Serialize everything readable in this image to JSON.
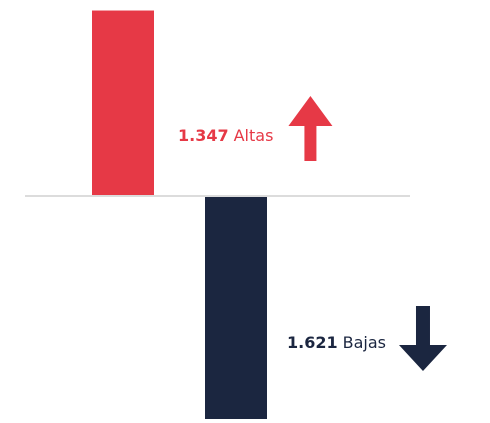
{
  "chart_data": {
    "type": "bar",
    "categories": [
      "Altas",
      "Bajas"
    ],
    "values": [
      1347,
      1621
    ],
    "value_labels": [
      "1.347",
      "1.621"
    ],
    "colors": [
      "#e63946",
      "#1b2640"
    ],
    "directions": [
      "up",
      "down"
    ]
  }
}
